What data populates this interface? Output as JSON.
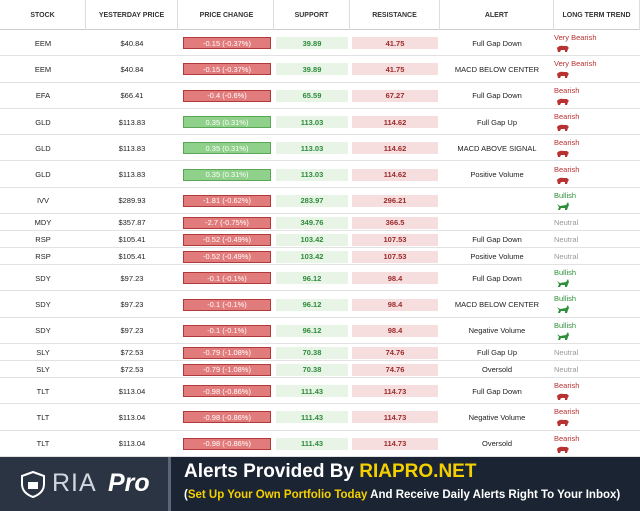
{
  "header": [
    "STOCK",
    "YESTERDAY PRICE",
    "PRICE CHANGE",
    "SUPPORT",
    "RESISTANCE",
    "ALERT",
    "LONG TERM TREND"
  ],
  "rows": [
    [
      "EEM",
      "$40.84",
      "-0.15 (-0.37%)",
      "39.89",
      "41.75",
      "Full Gap Down",
      "Very Bearish"
    ],
    [
      "EEM",
      "$40.84",
      "-0.15 (-0.37%)",
      "39.89",
      "41.75",
      "MACD BELOW CENTER",
      "Very Bearish"
    ],
    [
      "EFA",
      "$66.41",
      "-0.4 (-0.6%)",
      "65.59",
      "67.27",
      "Full Gap Down",
      "Bearish"
    ],
    [
      "GLD",
      "$113.83",
      "0.35 (0.31%)",
      "113.03",
      "114.62",
      "Full Gap Up",
      "Bearish"
    ],
    [
      "GLD",
      "$113.83",
      "0.35 (0.31%)",
      "113.03",
      "114.62",
      "MACD ABOVE SIGNAL",
      "Bearish"
    ],
    [
      "GLD",
      "$113.83",
      "0.35 (0.31%)",
      "113.03",
      "114.62",
      "Positive Volume",
      "Bearish"
    ],
    [
      "IVV",
      "$289.93",
      "-1.81 (-0.62%)",
      "283.97",
      "296.21",
      null,
      "Bullish"
    ],
    [
      "MDY",
      "$357.87",
      "-2.7 (-0.75%)",
      "349.76",
      "366.5",
      null,
      "Neutral"
    ],
    [
      "RSP",
      "$105.41",
      "-0.52 (-0.49%)",
      "103.42",
      "107.53",
      "Full Gap Down",
      "Neutral"
    ],
    [
      "RSP",
      "$105.41",
      "-0.52 (-0.49%)",
      "103.42",
      "107.53",
      "Positive Volume",
      "Neutral"
    ],
    [
      "SDY",
      "$97.23",
      "-0.1 (-0.1%)",
      "96.12",
      "98.4",
      "Full Gap Down",
      "Bullish"
    ],
    [
      "SDY",
      "$97.23",
      "-0.1 (-0.1%)",
      "96.12",
      "98.4",
      "MACD BELOW CENTER",
      "Bullish"
    ],
    [
      "SDY",
      "$97.23",
      "-0.1 (-0.1%)",
      "96.12",
      "98.4",
      "Negative Volume",
      "Bullish"
    ],
    [
      "SLY",
      "$72.53",
      "-0.79 (-1.08%)",
      "70.38",
      "74.76",
      "Full Gap Up",
      "Neutral"
    ],
    [
      "SLY",
      "$72.53",
      "-0.79 (-1.08%)",
      "70.38",
      "74.76",
      "Oversold",
      "Neutral"
    ],
    [
      "TLT",
      "$113.04",
      "-0.98 (-0.86%)",
      "111.43",
      "114.73",
      "Full Gap Down",
      "Bearish"
    ],
    [
      "TLT",
      "$113.04",
      "-0.98 (-0.86%)",
      "111.43",
      "114.73",
      "Negative Volume",
      "Bearish"
    ],
    [
      "TLT",
      "$113.04",
      "-0.98 (-0.86%)",
      "111.43",
      "114.73",
      "Oversold",
      "Bearish"
    ]
  ],
  "banner": {
    "logo_ria": "RIA",
    "logo_pro": "Pro",
    "headline": [
      "Alerts Provided By",
      "RIAPRO.NET"
    ],
    "subline": [
      "(",
      "Set Up Your Own Portfolio Today",
      "And Receive Daily Alerts Right To Your Inbox)"
    ]
  }
}
